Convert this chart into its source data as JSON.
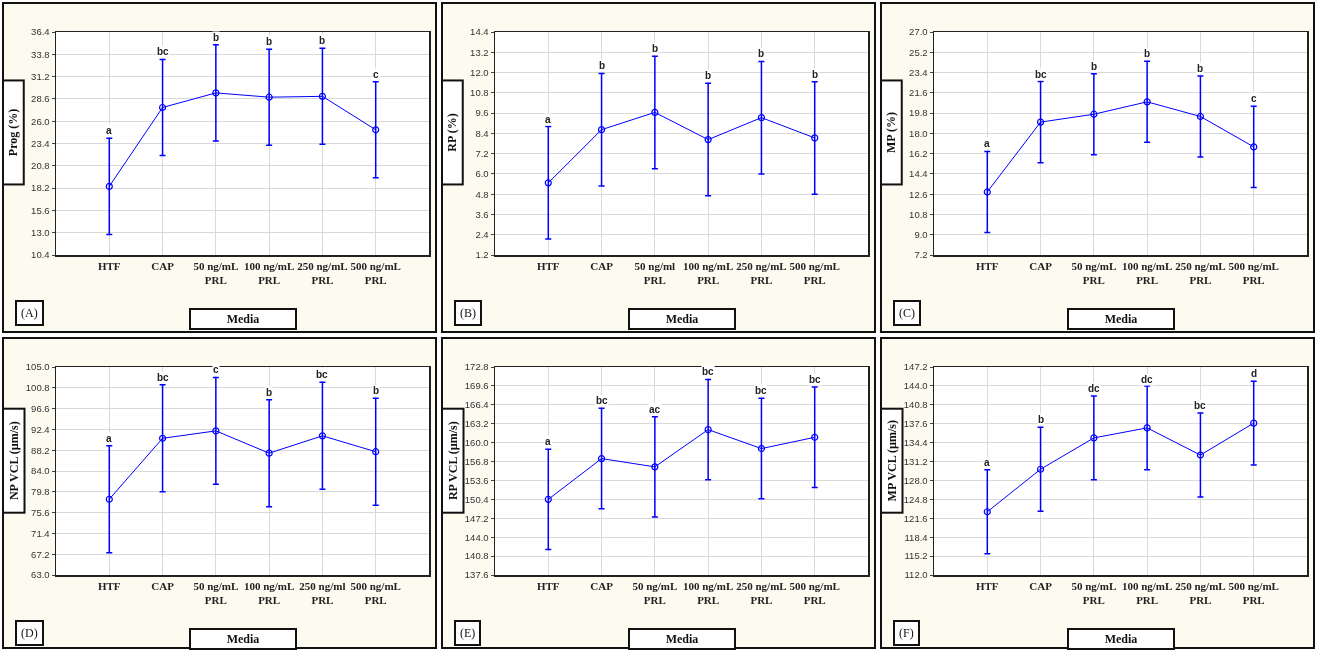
{
  "chart_data": [
    {
      "type": "line",
      "ylabel": "Prog (%)",
      "xlabel": "Media",
      "categories": [
        "HTF",
        "CAP",
        "50 ng/mL\nPRL",
        "100 ng/mL\nPRL",
        "250 ng/mL\nPRL",
        "500 ng/mL\nPRL"
      ],
      "series": [
        {
          "color": "#0000ff",
          "values": [
            18.4,
            27.6,
            29.3,
            28.8,
            28.9,
            25.0
          ],
          "errors": [
            5.6,
            5.6,
            5.6,
            5.6,
            5.6,
            5.6
          ]
        }
      ],
      "ylim": [
        10.4,
        36.4
      ],
      "yticks": [
        10.4,
        {
          "value": 13,
          "label": "13.0"
        },
        15.6,
        18.2,
        20.8,
        23.4,
        {
          "value": 26,
          "label": "26.0"
        },
        28.6,
        31.2,
        33.8,
        36.4
      ],
      "grid": true,
      "marker": "circle",
      "line_style": "solid",
      "annotations": [
        "(A)",
        {
          "text": "a",
          "x": "HTF",
          "y": 24.0
        },
        {
          "text": "bc",
          "x": "CAP",
          "y": 33.2
        },
        {
          "text": "b",
          "x": "50 ng/mL\nPRL",
          "y": 34.9
        },
        {
          "text": "b",
          "x": "100 ng/mL\nPRL",
          "y": 34.4
        },
        {
          "text": "b",
          "x": "250 ng/mL\nPRL",
          "y": 34.5
        },
        {
          "text": "c",
          "x": "500 ng/mL\nPRL",
          "y": 30.6
        }
      ]
    },
    {
      "type": "line",
      "ylabel": "RP (%)",
      "xlabel": "Media",
      "categories": [
        "HTF",
        "CAP",
        "50 ng/ml\nPRL",
        "100 ng/mL\nPRL",
        "250 ng/mL\nPRL",
        "500 ng/mL\nPRL"
      ],
      "series": [
        {
          "color": "#0000ff",
          "values": [
            5.47,
            8.62,
            9.64,
            8.03,
            9.33,
            8.13
          ],
          "errors": [
            3.33,
            3.33,
            3.33,
            3.33,
            3.33,
            3.33
          ]
        }
      ],
      "ylim": [
        1.2,
        14.4
      ],
      "yticks": [
        1.2,
        2.4,
        3.6,
        4.8,
        {
          "value": 6,
          "label": "6.0"
        },
        7.2,
        8.4,
        9.6,
        10.8,
        {
          "value": 12,
          "label": "12.0"
        },
        13.2,
        14.4
      ],
      "grid": true,
      "marker": "circle",
      "line_style": "solid",
      "annotations": [
        "(B)",
        {
          "text": "a",
          "x": "HTF",
          "y": 8.8
        },
        {
          "text": "b",
          "x": "CAP",
          "y": 11.95
        },
        {
          "text": "b",
          "x": "50 ng/ml\nPRL",
          "y": 12.97
        },
        {
          "text": "b",
          "x": "100 ng/mL\nPRL",
          "y": 11.36
        },
        {
          "text": "b",
          "x": "250 ng/mL\nPRL",
          "y": 12.66
        },
        {
          "text": "b",
          "x": "500 ng/mL\nPRL",
          "y": 11.46
        }
      ]
    },
    {
      "type": "line",
      "ylabel": "MP (%)",
      "xlabel": "Media",
      "categories": [
        "HTF",
        "CAP",
        "50 ng/mL\nPRL",
        "100 ng/mL\nPRL",
        "250 ng/mL\nPRL",
        "500 ng/mL\nPRL"
      ],
      "series": [
        {
          "color": "#0000ff",
          "values": [
            12.8,
            19.0,
            19.7,
            20.8,
            19.5,
            16.8
          ],
          "errors": [
            3.6,
            3.6,
            3.6,
            3.6,
            3.6,
            3.6
          ]
        }
      ],
      "ylim": [
        7.2,
        27.0
      ],
      "yticks": [
        7.2,
        {
          "value": 9,
          "label": "9.0"
        },
        10.8,
        12.6,
        14.4,
        16.2,
        {
          "value": 18,
          "label": "18.0"
        },
        19.8,
        21.6,
        23.4,
        25.2,
        {
          "value": 27,
          "label": "27.0"
        }
      ],
      "grid": true,
      "marker": "circle",
      "line_style": "solid",
      "annotations": [
        "(C)",
        {
          "text": "a",
          "x": "HTF",
          "y": 16.4
        },
        {
          "text": "bc",
          "x": "CAP",
          "y": 22.55
        },
        {
          "text": "b",
          "x": "50 ng/mL\nPRL",
          "y": 23.25
        },
        {
          "text": "b",
          "x": "100 ng/mL\nPRL",
          "y": 24.4
        },
        {
          "text": "b",
          "x": "250 ng/mL\nPRL",
          "y": 23.07
        },
        {
          "text": "c",
          "x": "500 ng/mL\nPRL",
          "y": 20.44
        }
      ]
    },
    {
      "type": "line",
      "ylabel": "NP VCL (µm/s)",
      "xlabel": "Media",
      "categories": [
        "HTF",
        "CAP",
        "50 ng/mL\nPRL",
        "100 ng/mL\nPRL",
        "250 ng/ml\nPRL",
        "500 ng/mL\nPRL"
      ],
      "series": [
        {
          "color": "#0000ff",
          "values": [
            78.3,
            90.6,
            92.1,
            87.6,
            91.1,
            87.9
          ],
          "errors": [
            10.8,
            10.8,
            10.8,
            10.8,
            10.8,
            10.8
          ]
        }
      ],
      "ylim": [
        63.0,
        105.0
      ],
      "yticks": [
        {
          "value": 63,
          "label": "63.0"
        },
        67.2,
        71.4,
        75.6,
        79.8,
        {
          "value": 84,
          "label": "84.0"
        },
        88.2,
        92.4,
        96.6,
        100.8,
        {
          "value": 105,
          "label": "105.0"
        }
      ],
      "grid": true,
      "marker": "circle",
      "line_style": "solid",
      "annotations": [
        "(D)",
        {
          "text": "a",
          "x": "HTF",
          "y": 89.1
        },
        {
          "text": "bc",
          "x": "CAP",
          "y": 101.4
        },
        {
          "text": "c",
          "x": "50 ng/mL\nPRL",
          "y": 102.9
        },
        {
          "text": "b",
          "x": "100 ng/mL\nPRL",
          "y": 98.4
        },
        {
          "text": "bc",
          "x": "250 ng/ml\nPRL",
          "y": 101.9
        },
        {
          "text": "b",
          "x": "500 ng/mL\nPRL",
          "y": 98.7
        }
      ]
    },
    {
      "type": "line",
      "ylabel": "RP VCL (µm/s)",
      "xlabel": "Media",
      "categories": [
        "HTF",
        "CAP",
        "50 ng/mL\nPRL",
        "100 ng/mL\nPRL",
        "250 ng/mL\nPRL",
        "500 ng/mL\nPRL"
      ],
      "series": [
        {
          "color": "#0000ff",
          "values": [
            150.4,
            157.3,
            155.9,
            162.2,
            159.0,
            160.9
          ],
          "errors": [
            8.5,
            8.5,
            8.5,
            8.5,
            8.5,
            8.5
          ]
        }
      ],
      "ylim": [
        137.6,
        172.8
      ],
      "yticks": [
        137.6,
        140.8,
        {
          "value": 144,
          "label": "144.0"
        },
        147.2,
        150.4,
        153.6,
        156.8,
        {
          "value": 160,
          "label": "160.0"
        },
        163.2,
        166.4,
        169.6,
        172.8
      ],
      "grid": true,
      "marker": "circle",
      "line_style": "solid",
      "annotations": [
        "(E)",
        {
          "text": "a",
          "x": "HTF",
          "y": 158.9
        },
        {
          "text": "bc",
          "x": "CAP",
          "y": 165.8
        },
        {
          "text": "ac",
          "x": "50 ng/mL\nPRL",
          "y": 164.4
        },
        {
          "text": "bc",
          "x": "100 ng/mL\nPRL",
          "y": 170.7
        },
        {
          "text": "bc",
          "x": "250 ng/mL\nPRL",
          "y": 167.5
        },
        {
          "text": "bc",
          "x": "500 ng/mL\nPRL",
          "y": 169.4
        }
      ]
    },
    {
      "type": "line",
      "ylabel": "MP VCL (µm/s)",
      "xlabel": "Media",
      "categories": [
        "HTF",
        "CAP",
        "50 ng/mL\nPRL",
        "100 ng/mL\nPRL",
        "250 ng/mL\nPRL",
        "500 ng/mL\nPRL"
      ],
      "series": [
        {
          "color": "#0000ff",
          "values": [
            122.7,
            129.9,
            135.2,
            136.9,
            132.3,
            137.7
          ],
          "errors": [
            7.1,
            7.1,
            7.1,
            7.1,
            7.1,
            7.1
          ]
        }
      ],
      "ylim": [
        112.0,
        147.2
      ],
      "yticks": [
        {
          "value": 112,
          "label": "112.0"
        },
        115.2,
        118.4,
        121.6,
        124.8,
        {
          "value": 128,
          "label": "128.0"
        },
        131.2,
        134.4,
        137.6,
        140.8,
        {
          "value": 144,
          "label": "144.0"
        },
        147.2
      ],
      "grid": true,
      "marker": "circle",
      "line_style": "solid",
      "annotations": [
        "(F)",
        {
          "text": "a",
          "x": "HTF",
          "y": 129.8
        },
        {
          "text": "b",
          "x": "CAP",
          "y": 137.0
        },
        {
          "text": "dc",
          "x": "50 ng/mL\nPRL",
          "y": 142.3
        },
        {
          "text": "dc",
          "x": "100 ng/mL\nPRL",
          "y": 143.8
        },
        {
          "text": "bc",
          "x": "250 ng/mL\nPRL",
          "y": 139.4
        },
        {
          "text": "d",
          "x": "500 ng/mL\nPRL",
          "y": 144.8
        }
      ]
    }
  ]
}
